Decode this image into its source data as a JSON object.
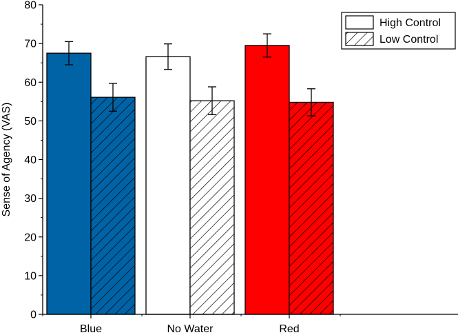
{
  "chart_data": {
    "type": "bar",
    "title": "",
    "xlabel": "",
    "ylabel": "Sense of Agency (VAS)",
    "ylim": [
      0,
      80
    ],
    "yticks": [
      0,
      10,
      20,
      30,
      40,
      50,
      60,
      70,
      80
    ],
    "categories": [
      "Blue",
      "No Water",
      "Red"
    ],
    "category_colors": [
      "#0063a6",
      "#ffffff",
      "#ff0000"
    ],
    "series": [
      {
        "name": "High Control",
        "pattern": "solid",
        "values": [
          67.5,
          66.6,
          69.5
        ],
        "errors": [
          3.0,
          3.3,
          3.0
        ]
      },
      {
        "name": "Low Control",
        "pattern": "hatched",
        "values": [
          56.1,
          55.2,
          54.8
        ],
        "errors": [
          3.6,
          3.6,
          3.5
        ]
      }
    ],
    "legend_position": "top-right",
    "grid": false
  }
}
